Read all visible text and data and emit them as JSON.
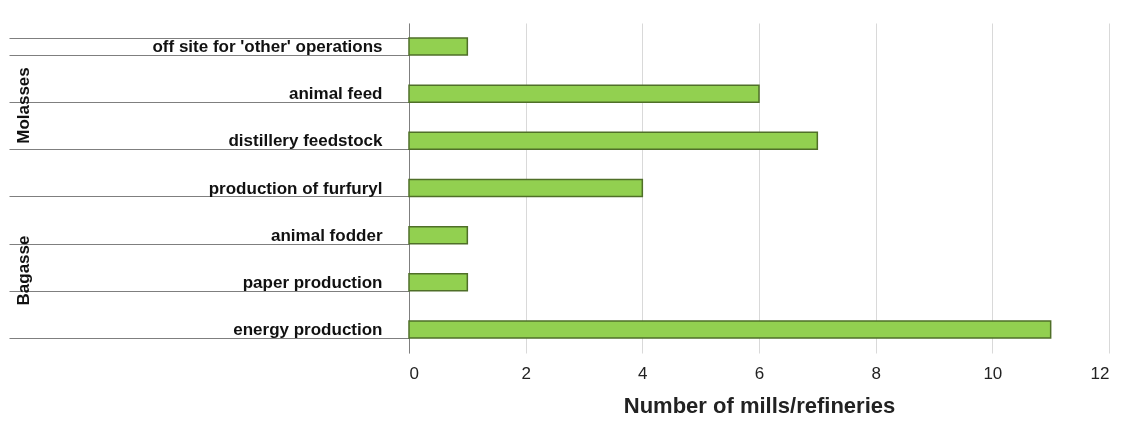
{
  "chart_data": {
    "type": "bar",
    "orientation": "horizontal",
    "categories": [
      "off site for 'other' operations",
      "animal feed",
      "distillery feedstock",
      "production of furfuryl",
      "animal fodder",
      "paper production",
      "energy production"
    ],
    "values": [
      1,
      6,
      7,
      4,
      1,
      1,
      11
    ],
    "color": "#92d050",
    "xlabel": "Number of mills/refineries",
    "xlim": [
      0,
      12
    ],
    "xticks": [
      0,
      2,
      4,
      6,
      8,
      10,
      12
    ],
    "grid": "x",
    "annotations": [
      "Molasses",
      "Bagasse"
    ]
  }
}
